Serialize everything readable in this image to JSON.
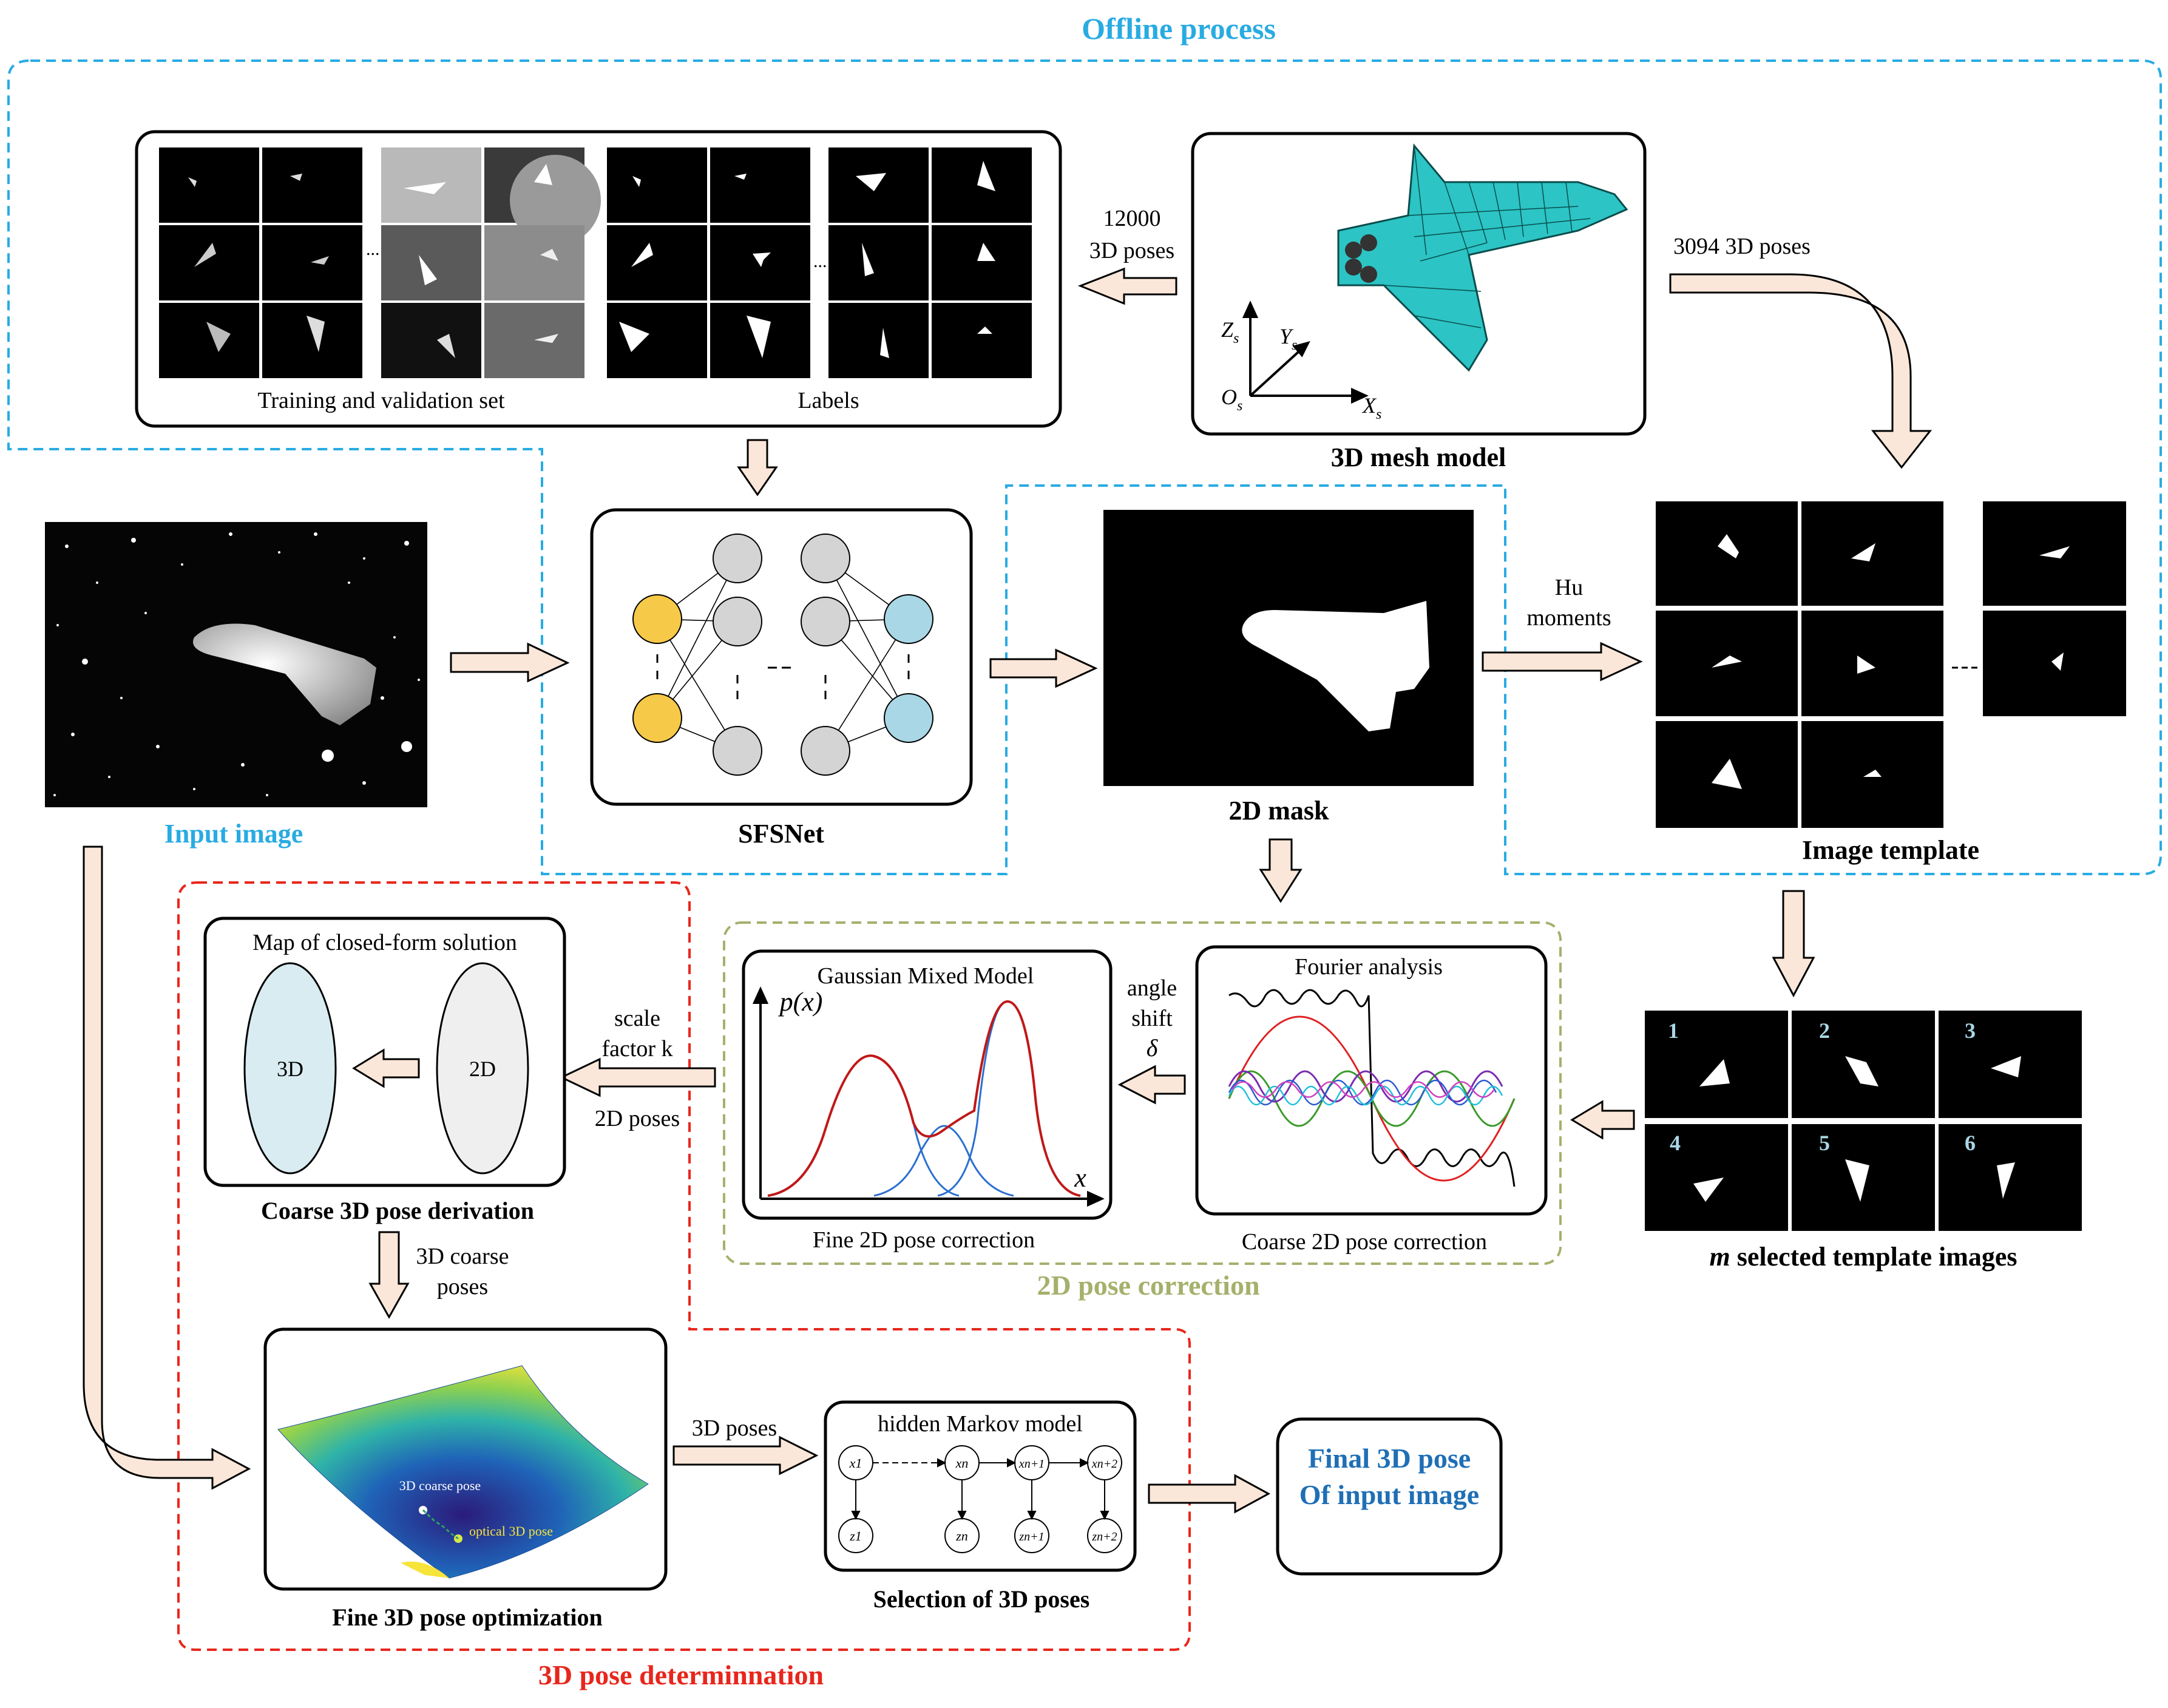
{
  "titles": {
    "offline": "Offline process",
    "pose3d": "3D pose determinnation",
    "pose2d": "2D pose correction"
  },
  "colors": {
    "offline": "#29abe2",
    "pose3d": "#e8261c",
    "pose2d": "#a4b16c",
    "arrow_fill": "#fbe7d9",
    "final": "#1f6fb5",
    "mesh": "#2cc4c4",
    "node_yellow": "#f7c948",
    "node_gray": "#d4d4d4",
    "node_blue": "#a9d7e6",
    "ellipse3d": "#d9ecf2",
    "ellipse2d": "#efefef"
  },
  "offline": {
    "training_label": "Training and validation set",
    "labels_label": "Labels",
    "poses_12000": "12000",
    "poses_12000_unit": "3D poses",
    "mesh_title": "3D mesh model",
    "axis_z": "Z",
    "axis_y": "Y",
    "axis_x": "X",
    "axis_o": "O",
    "axis_sub": "s",
    "poses_3094": "3094 3D poses"
  },
  "main_row": {
    "input_title": "Input image",
    "sfsnet_title": "SFSNet",
    "mask_title": "2D mask",
    "hu_line1": "Hu",
    "hu_line2": "moments",
    "template_title": "Image template",
    "dash": "---"
  },
  "selected": {
    "prefix": "m",
    "title": " selected template images",
    "numbers": [
      "1",
      "2",
      "3",
      "4",
      "5",
      "6"
    ]
  },
  "pose2d": {
    "fourier_title": "Fourier analysis",
    "coarse_label": "Coarse 2D pose correction",
    "angle_line1": "angle",
    "angle_line2": "shift",
    "angle_sym": "δ",
    "gmm_title": "Gaussian Mixed Model",
    "gmm_y": "p(x)",
    "gmm_x": "x",
    "fine_label": "Fine 2D pose correction"
  },
  "pose3d": {
    "map_title": "Map of closed-form solution",
    "label_3d": "3D",
    "label_2d": "2D",
    "scale_line1": "scale",
    "scale_line2": "factor k",
    "poses_2d": "2D poses",
    "coarse_derivation": "Coarse 3D pose derivation",
    "coarse_poses_line1": "3D coarse",
    "coarse_poses_line2": "poses",
    "surface_coarse": "3D coarse pose",
    "surface_optical": "optical 3D pose",
    "fine_opt": "Fine 3D pose optimization",
    "poses_3d": "3D poses",
    "hmm_title": "hidden Markov model",
    "hmm_x": [
      "x1",
      "xn",
      "xn+1",
      "xn+2"
    ],
    "hmm_z": [
      "z1",
      "zn",
      "zn+1",
      "zn+2"
    ],
    "selection": "Selection of 3D poses"
  },
  "final": {
    "line1": "Final 3D pose",
    "line2": "Of input image"
  }
}
